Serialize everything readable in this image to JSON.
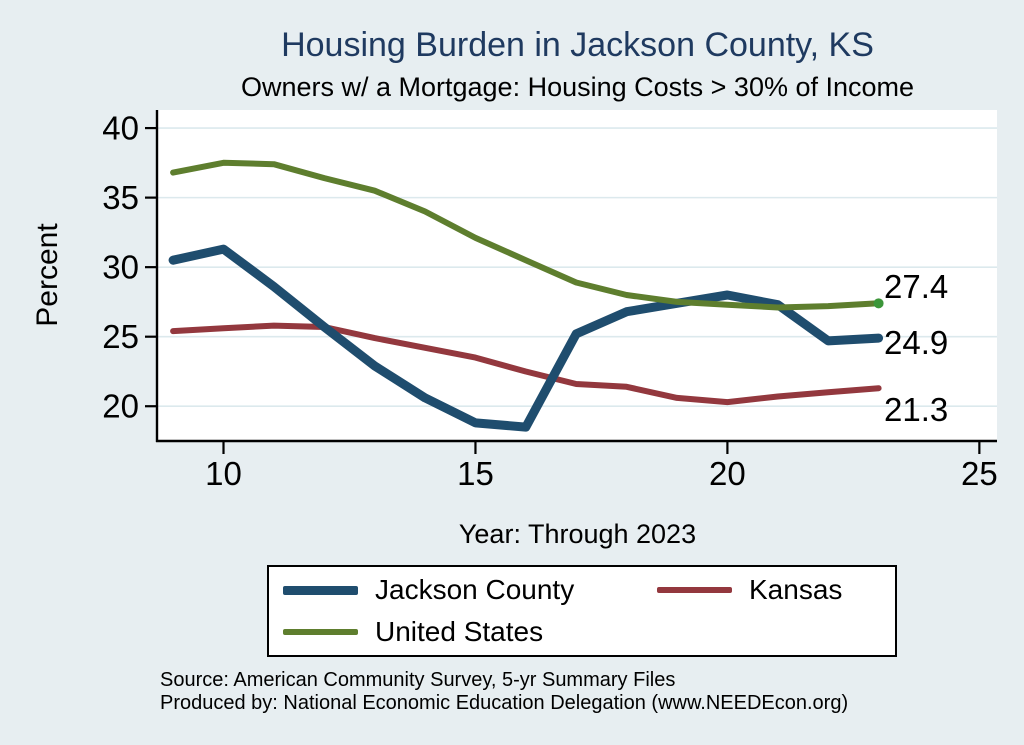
{
  "chart_data": {
    "type": "line",
    "title": "Housing Burden in Jackson County, KS",
    "subtitle": "Owners w/ a Mortgage: Housing Costs > 30% of Income",
    "xlabel": "Year: Through 2023",
    "ylabel": "Percent",
    "x": [
      9,
      10,
      11,
      12,
      13,
      14,
      15,
      16,
      17,
      18,
      19,
      20,
      21,
      22,
      23
    ],
    "x_ticks": [
      10,
      15,
      20,
      25
    ],
    "y_ticks": [
      20,
      25,
      30,
      35,
      40
    ],
    "xlim": [
      8.7,
      25.35
    ],
    "ylim": [
      17.5,
      41.3
    ],
    "grid": "horizontal",
    "legend_position": "bottom",
    "series": [
      {
        "name": "Jackson County",
        "color": "#1f4d6e",
        "line_width": 9,
        "z": 2,
        "end_label": "24.9",
        "label_dy": 5,
        "values": [
          30.5,
          31.3,
          28.6,
          25.7,
          22.9,
          20.6,
          18.8,
          18.5,
          25.2,
          26.8,
          27.4,
          28.0,
          27.3,
          24.7,
          24.9
        ]
      },
      {
        "name": "Kansas",
        "color": "#93383e",
        "line_width": 6,
        "z": 1,
        "end_label": "21.3",
        "label_dy": 22,
        "values": [
          25.4,
          25.6,
          25.8,
          25.7,
          24.9,
          24.2,
          23.5,
          22.5,
          21.6,
          21.4,
          20.6,
          20.3,
          20.7,
          21.0,
          21.3
        ]
      },
      {
        "name": "United States",
        "color": "#5e7e2e",
        "line_width": 6,
        "z": 3,
        "end_label": "27.4",
        "label_dy": -16,
        "end_marker_color": "#3c9639",
        "values": [
          36.8,
          37.5,
          37.4,
          36.4,
          35.5,
          34.0,
          32.1,
          30.5,
          28.9,
          28.0,
          27.5,
          27.3,
          27.1,
          27.2,
          27.4
        ]
      }
    ]
  },
  "notes": {
    "source": "Source: American Community Survey, 5-yr Summary Files",
    "producer": "Produced by: National Economic Education Delegation (www.NEEDEcon.org)"
  },
  "colors": {
    "background": "#e7eef1",
    "plot_background": "#ffffff",
    "title": "#1f3a60",
    "grid": "#dce9ed",
    "axis": "#000000",
    "tick_label": "#000000"
  }
}
